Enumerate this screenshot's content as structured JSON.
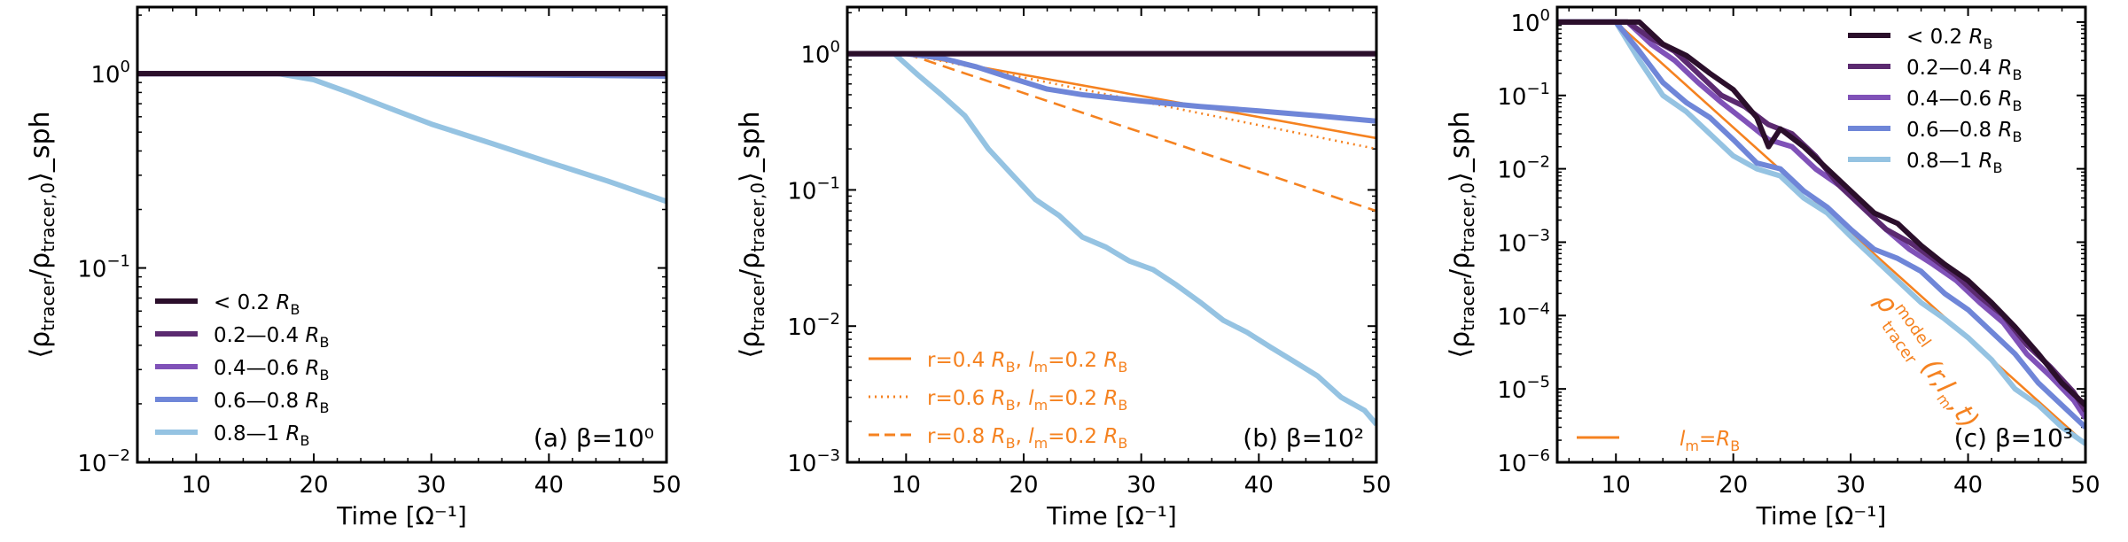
{
  "colors": {
    "bin0": "#2b0f2b",
    "bin1": "#5b2a70",
    "bin2": "#8052b8",
    "bin3": "#6f86d8",
    "bin4": "#95c3e2",
    "model": "#f58220"
  },
  "common": {
    "xlabel": "Time [Ω⁻¹]",
    "ylabel": "⟨ρ_tracer/ρ_tracer,0⟩_sph",
    "yscale": "log",
    "xlim": [
      5,
      50
    ],
    "xticks": [
      "10",
      "20",
      "30",
      "40",
      "50"
    ]
  },
  "chart_data": [
    {
      "type": "line",
      "panel_label": "(a) β=10⁰",
      "ylim": [
        0.01,
        2.2
      ],
      "yticks": [
        "10⁻²",
        "10⁻¹",
        "10⁰"
      ],
      "legend_position": "lower-left",
      "series": [
        {
          "name": "< 0.2 R_B",
          "color_key": "bin0",
          "x": [
            5,
            50
          ],
          "y": [
            1.0,
            1.0
          ]
        },
        {
          "name": "0.2—0.4 R_B",
          "color_key": "bin1",
          "x": [
            5,
            50
          ],
          "y": [
            1.0,
            1.0
          ]
        },
        {
          "name": "0.4—0.6 R_B",
          "color_key": "bin2",
          "x": [
            5,
            50
          ],
          "y": [
            1.0,
            1.0
          ]
        },
        {
          "name": "0.6—0.8 R_B",
          "color_key": "bin3",
          "x": [
            5,
            20,
            35,
            50
          ],
          "y": [
            1.0,
            1.0,
            0.99,
            0.97
          ]
        },
        {
          "name": "0.8—1 R_B",
          "color_key": "bin4",
          "x": [
            5,
            17,
            20,
            23,
            26,
            30,
            35,
            40,
            45,
            50
          ],
          "y": [
            1.0,
            1.0,
            0.93,
            0.8,
            0.68,
            0.55,
            0.44,
            0.35,
            0.28,
            0.22
          ]
        }
      ]
    },
    {
      "type": "line",
      "panel_label": "(b) β=10²",
      "ylim": [
        0.001,
        2.2
      ],
      "yticks": [
        "10⁻³",
        "10⁻²",
        "10⁻¹",
        "10⁰"
      ],
      "legend_position": "lower-left",
      "series": [
        {
          "name": "< 0.2 R_B",
          "color_key": "bin0",
          "x": [
            5,
            50
          ],
          "y": [
            1.0,
            1.0
          ]
        },
        {
          "name": "0.2—0.4 R_B",
          "color_key": "bin1",
          "x": [
            5,
            50
          ],
          "y": [
            1.0,
            1.0
          ]
        },
        {
          "name": "0.4—0.6 R_B",
          "color_key": "bin2",
          "x": [
            5,
            50
          ],
          "y": [
            1.0,
            1.0
          ]
        },
        {
          "name": "0.6—0.8 R_B",
          "color_key": "bin3",
          "x": [
            5,
            10,
            13,
            16,
            19,
            22,
            25,
            30,
            35,
            40,
            45,
            50
          ],
          "y": [
            1.0,
            1.0,
            0.93,
            0.8,
            0.66,
            0.55,
            0.5,
            0.45,
            0.41,
            0.38,
            0.35,
            0.32
          ]
        },
        {
          "name": "0.8—1 R_B",
          "color_key": "bin4",
          "x": [
            5,
            9,
            11,
            13,
            15,
            17,
            19,
            21,
            23,
            25,
            27,
            29,
            31,
            33,
            35,
            37,
            39,
            41,
            43,
            45,
            47,
            49,
            50
          ],
          "y": [
            1.0,
            1.0,
            0.7,
            0.5,
            0.35,
            0.2,
            0.13,
            0.085,
            0.065,
            0.045,
            0.038,
            0.03,
            0.026,
            0.02,
            0.015,
            0.011,
            0.009,
            0.007,
            0.0055,
            0.0043,
            0.003,
            0.0024,
            0.0019
          ]
        }
      ],
      "models": [
        {
          "label": "r=0.4 R_B, l_m=0.2 R_B",
          "dash": "solid",
          "x": [
            5,
            10,
            50
          ],
          "y": [
            1.0,
            1.0,
            0.24
          ]
        },
        {
          "label": "r=0.6 R_B, l_m=0.2 R_B",
          "dash": "dotted",
          "x": [
            5,
            10,
            50
          ],
          "y": [
            1.0,
            1.0,
            0.2
          ]
        },
        {
          "label": "r=0.8 R_B, l_m=0.2 R_B",
          "dash": "dashed",
          "x": [
            5,
            10,
            50
          ],
          "y": [
            1.0,
            1.0,
            0.07
          ]
        }
      ]
    },
    {
      "type": "line",
      "panel_label": "(c) β=10³",
      "ylim": [
        1e-06,
        1.6
      ],
      "yticks": [
        "10⁻⁶",
        "10⁻⁵",
        "10⁻⁴",
        "10⁻³",
        "10⁻²",
        "10⁻¹",
        "10⁰"
      ],
      "legend_position": "top-right",
      "series": [
        {
          "name": "< 0.2 R_B",
          "color_key": "bin0",
          "x": [
            5,
            10,
            12,
            14,
            16,
            18,
            20,
            22,
            23,
            24,
            26,
            28,
            30,
            32,
            34,
            36,
            38,
            40,
            42,
            44,
            46,
            48,
            50
          ],
          "y": [
            1.0,
            1.0,
            1.0,
            0.5,
            0.35,
            0.2,
            0.12,
            0.05,
            0.02,
            0.035,
            0.02,
            0.01,
            0.005,
            0.0025,
            0.0018,
            0.0009,
            0.0005,
            0.0003,
            0.00015,
            7e-05,
            3e-05,
            1.2e-05,
            6e-06
          ]
        },
        {
          "name": "0.2—0.4 R_B",
          "color_key": "bin1",
          "x": [
            5,
            11,
            13,
            15,
            17,
            19,
            21,
            23,
            25,
            27,
            29,
            31,
            33,
            35,
            37,
            39,
            41,
            43,
            45,
            47,
            49,
            50
          ],
          "y": [
            1.0,
            1.0,
            0.6,
            0.4,
            0.2,
            0.1,
            0.07,
            0.04,
            0.03,
            0.015,
            0.006,
            0.003,
            0.0015,
            0.001,
            0.0006,
            0.00035,
            0.00018,
            0.0001,
            4e-05,
            2e-05,
            9e-06,
            5e-06
          ]
        },
        {
          "name": "0.4—0.6 R_B",
          "color_key": "bin2",
          "x": [
            5,
            11,
            13,
            15,
            17,
            19,
            21,
            23,
            25,
            27,
            29,
            31,
            33,
            35,
            37,
            39,
            41,
            43,
            45,
            47,
            49,
            50
          ],
          "y": [
            1.0,
            1.0,
            0.5,
            0.3,
            0.15,
            0.08,
            0.045,
            0.025,
            0.02,
            0.01,
            0.006,
            0.003,
            0.0015,
            0.0008,
            0.0005,
            0.0003,
            0.00015,
            8e-05,
            3e-05,
            1.5e-05,
            7e-06,
            4e-06
          ]
        },
        {
          "name": "0.6—0.8 R_B",
          "color_key": "bin3",
          "x": [
            5,
            10,
            12,
            14,
            16,
            18,
            20,
            22,
            24,
            26,
            28,
            30,
            32,
            34,
            36,
            38,
            40,
            42,
            44,
            46,
            48,
            50
          ],
          "y": [
            1.0,
            1.0,
            0.4,
            0.15,
            0.08,
            0.05,
            0.025,
            0.012,
            0.01,
            0.005,
            0.003,
            0.0015,
            0.0008,
            0.0006,
            0.0004,
            0.0002,
            0.00012,
            6e-05,
            3e-05,
            1.2e-05,
            6e-06,
            3e-06
          ]
        },
        {
          "name": "0.8—1 R_B",
          "color_key": "bin4",
          "x": [
            5,
            10,
            12,
            14,
            16,
            18,
            20,
            22,
            24,
            26,
            28,
            30,
            32,
            34,
            36,
            38,
            40,
            42,
            44,
            46,
            48,
            50
          ],
          "y": [
            1.0,
            1.0,
            0.3,
            0.1,
            0.06,
            0.03,
            0.015,
            0.01,
            0.008,
            0.004,
            0.0025,
            0.0012,
            0.0006,
            0.0003,
            0.00015,
            9e-05,
            5e-05,
            2.5e-05,
            1e-05,
            6e-06,
            3e-06,
            1.8e-06
          ]
        }
      ],
      "models": [
        {
          "label": "l_m=R_B",
          "dash": "solid",
          "x": [
            5,
            10,
            50
          ],
          "y": [
            1.0,
            1.0,
            1.8e-06
          ]
        }
      ],
      "model_annotation": "ρ_tracer^model (r,l_m,t)"
    }
  ]
}
